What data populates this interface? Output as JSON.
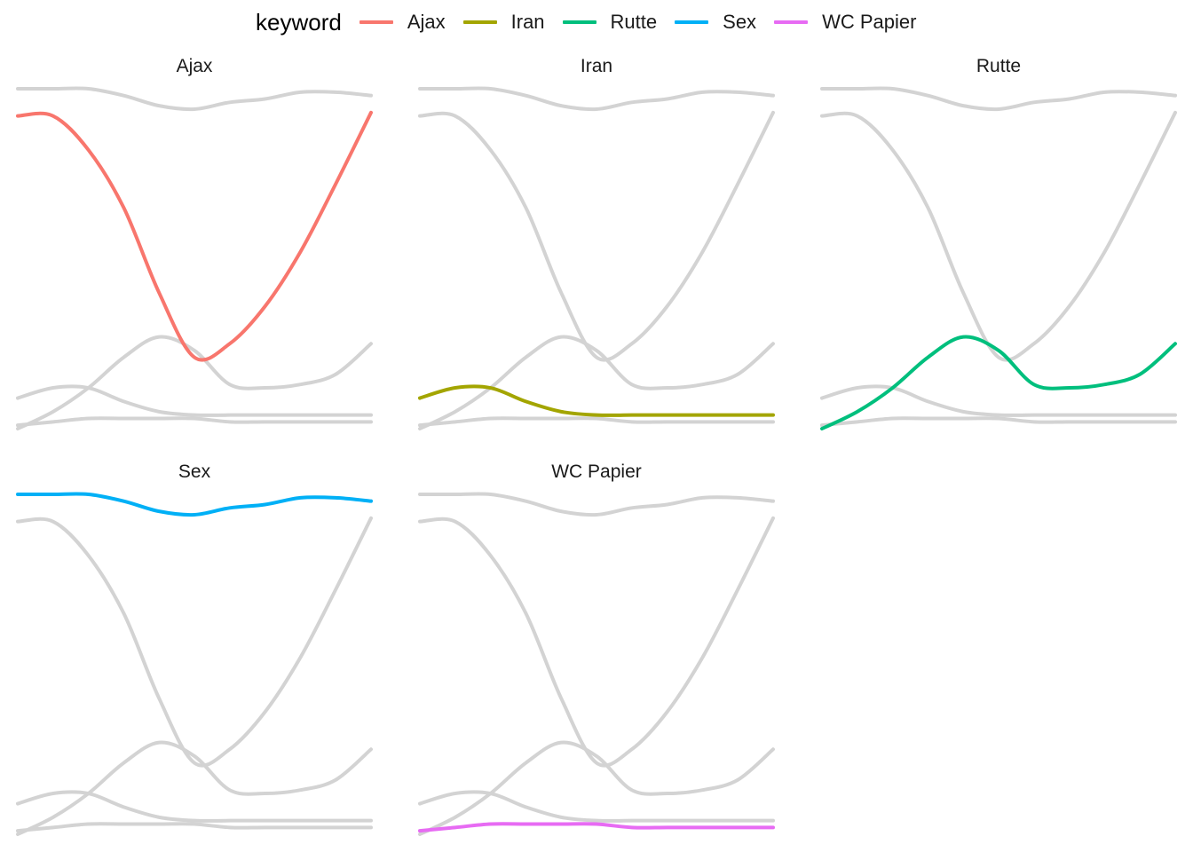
{
  "chart_data": {
    "type": "line",
    "legend": {
      "title": "keyword",
      "position": "top"
    },
    "grid": false,
    "axes_visible": false,
    "x": [
      0,
      10,
      20,
      30,
      40,
      50,
      60,
      70,
      80,
      90,
      100
    ],
    "ylim": [
      0,
      100
    ],
    "series": [
      {
        "name": "Ajax",
        "color": "#F8766D",
        "values": [
          92,
          92,
          82,
          65,
          40,
          21,
          25,
          36,
          52,
          72,
          93
        ]
      },
      {
        "name": "Iran",
        "color": "#A3A500",
        "values": [
          9,
          12,
          12,
          8,
          5,
          4,
          4,
          4,
          4,
          4,
          4
        ]
      },
      {
        "name": "Rutte",
        "color": "#00BF7D",
        "values": [
          0,
          5,
          12,
          21,
          27,
          23,
          13,
          12,
          13,
          16,
          25
        ]
      },
      {
        "name": "Sex",
        "color": "#00B0F6",
        "values": [
          100,
          100,
          100,
          98,
          95,
          94,
          96,
          97,
          99,
          99,
          98
        ]
      },
      {
        "name": "WC Papier",
        "color": "#E76BF3",
        "values": [
          1,
          2,
          3,
          3,
          3,
          3,
          2,
          2,
          2,
          2,
          2
        ]
      }
    ],
    "facets": [
      "Ajax",
      "Iran",
      "Rutte",
      "Sex",
      "WC Papier"
    ],
    "background_color": "#d3d3d3"
  }
}
